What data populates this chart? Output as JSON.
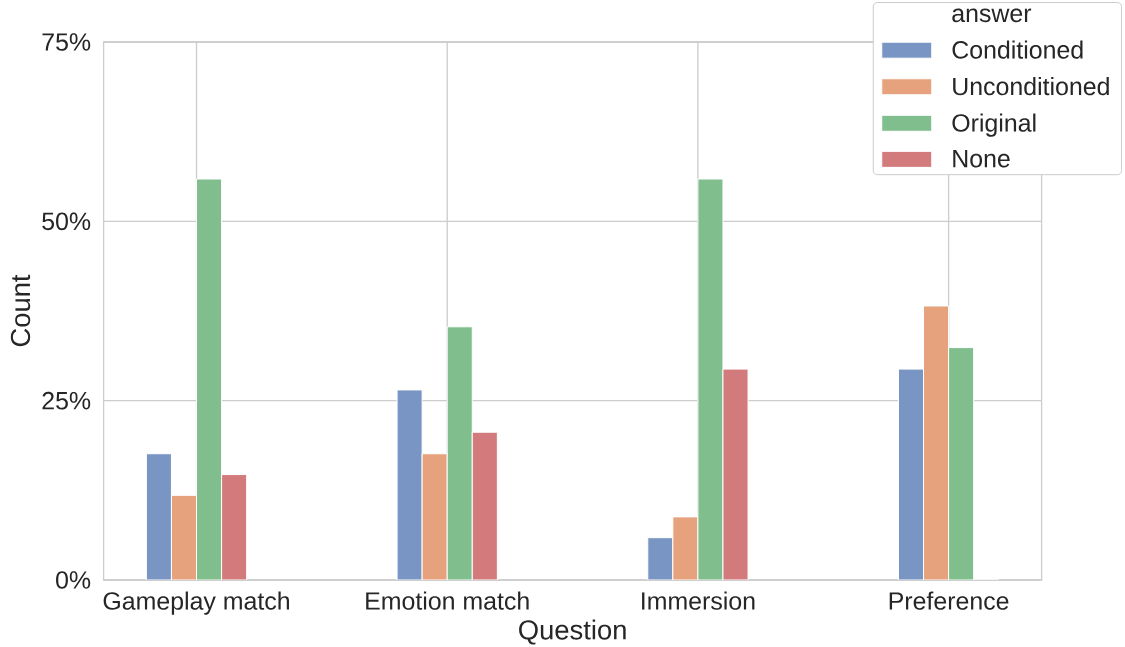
{
  "chart_data": {
    "type": "bar",
    "xlabel": "Question",
    "ylabel": "Count",
    "legend_title": "answer",
    "categories": [
      "Gameplay match",
      "Emotion match",
      "Immersion",
      "Preference"
    ],
    "series": [
      {
        "name": "Conditioned",
        "color": "#7995c4",
        "values": [
          17.6,
          26.5,
          5.9,
          29.4
        ]
      },
      {
        "name": "Unconditioned",
        "color": "#e5a27d",
        "values": [
          11.8,
          17.6,
          8.8,
          38.2
        ]
      },
      {
        "name": "Original",
        "color": "#80be8e",
        "values": [
          55.9,
          35.3,
          55.9,
          32.4
        ]
      },
      {
        "name": "None",
        "color": "#d37a7d",
        "values": [
          14.7,
          20.6,
          29.4,
          0
        ]
      }
    ],
    "ylim": [
      0,
      75
    ],
    "yticks": [
      {
        "value": 0,
        "label": "0%"
      },
      {
        "value": 25,
        "label": "25%"
      },
      {
        "value": 50,
        "label": "50%"
      },
      {
        "value": 75,
        "label": "75%"
      }
    ],
    "grid": true,
    "legend": "top right"
  }
}
